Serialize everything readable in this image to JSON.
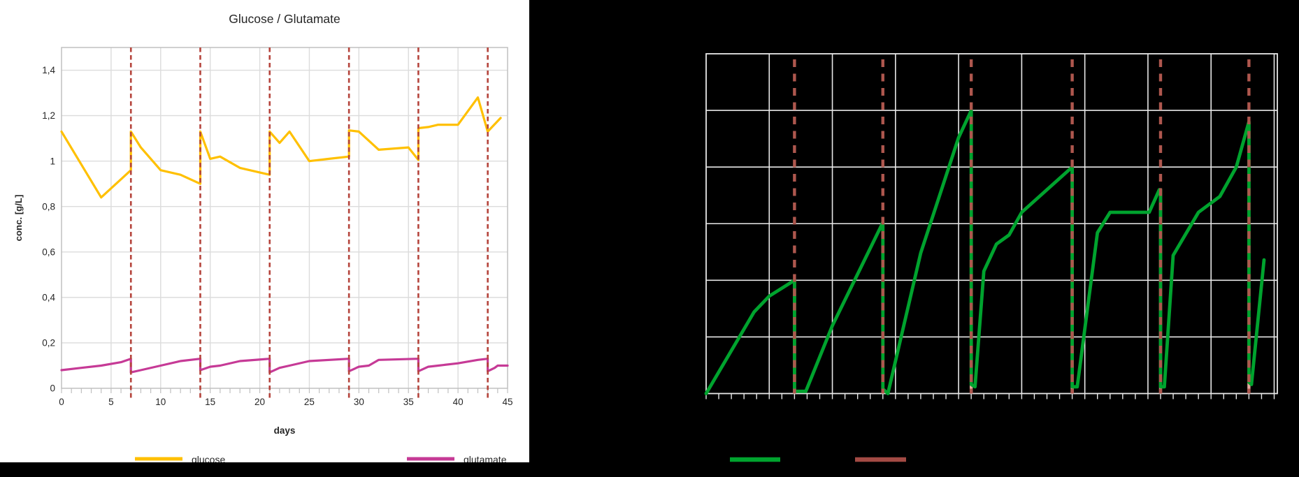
{
  "colors": {
    "glucose": "#FFC000",
    "glutamate": "#C63A96",
    "green_series": "#00A32E",
    "feed_dash_left": "#B5443C",
    "feed_dash_right": "#AE574E",
    "feed_underlay_right": "#E3A89D",
    "left_grid": "#DCDCDC",
    "left_frame": "#C0C0C0",
    "right_grid": "#E8E8E8",
    "text": "#262626"
  },
  "chart_data": [
    {
      "type": "line",
      "title": "Glucose / Glutamate",
      "xlabel": "days",
      "ylabel": "conc. [g/L]",
      "xlim": [
        0,
        45
      ],
      "ylim": [
        0,
        1.5
      ],
      "x_major": 5,
      "x_minor": 1,
      "y_major": 0.2,
      "grid": true,
      "legend_position": "bottom",
      "x_tick_labels": [
        "0",
        "5",
        "10",
        "15",
        "20",
        "25",
        "30",
        "35",
        "40",
        "45"
      ],
      "y_tick_labels": [
        "0",
        "0,2",
        "0,4",
        "0,6",
        "0,8",
        "1",
        "1,2",
        "1,4"
      ],
      "feed_event_days": [
        7,
        14,
        21,
        29,
        36,
        43
      ],
      "series": [
        {
          "name": "glucose",
          "color": "#FFC000",
          "points": [
            [
              0,
              1.13
            ],
            [
              4,
              0.84
            ],
            [
              7,
              0.96
            ],
            [
              7,
              1.13
            ],
            [
              8,
              1.06
            ],
            [
              10,
              0.96
            ],
            [
              12,
              0.94
            ],
            [
              14,
              0.9
            ],
            [
              14,
              1.13
            ],
            [
              15,
              1.01
            ],
            [
              16,
              1.02
            ],
            [
              18,
              0.97
            ],
            [
              21,
              0.94
            ],
            [
              21,
              1.13
            ],
            [
              22,
              1.08
            ],
            [
              23,
              1.13
            ],
            [
              25,
              1.0
            ],
            [
              27,
              1.01
            ],
            [
              29,
              1.02
            ],
            [
              29,
              1.135
            ],
            [
              30,
              1.13
            ],
            [
              32,
              1.05
            ],
            [
              35,
              1.06
            ],
            [
              36,
              1.005
            ],
            [
              36,
              1.145
            ],
            [
              37,
              1.15
            ],
            [
              38,
              1.16
            ],
            [
              40,
              1.16
            ],
            [
              42,
              1.28
            ],
            [
              43,
              1.13
            ],
            [
              44.3,
              1.19
            ]
          ]
        },
        {
          "name": "glutamate",
          "color": "#C63A96",
          "points": [
            [
              0,
              0.08
            ],
            [
              2,
              0.09
            ],
            [
              4,
              0.1
            ],
            [
              6,
              0.115
            ],
            [
              7,
              0.13
            ],
            [
              7,
              0.07
            ],
            [
              8,
              0.08
            ],
            [
              10,
              0.1
            ],
            [
              12,
              0.12
            ],
            [
              14,
              0.13
            ],
            [
              14,
              0.08
            ],
            [
              15,
              0.095
            ],
            [
              16,
              0.1
            ],
            [
              18,
              0.12
            ],
            [
              21,
              0.13
            ],
            [
              21,
              0.07
            ],
            [
              22,
              0.09
            ],
            [
              23,
              0.1
            ],
            [
              25,
              0.12
            ],
            [
              29,
              0.13
            ],
            [
              29,
              0.075
            ],
            [
              30,
              0.095
            ],
            [
              31,
              0.1
            ],
            [
              32,
              0.125
            ],
            [
              36,
              0.13
            ],
            [
              36,
              0.075
            ],
            [
              37,
              0.095
            ],
            [
              38,
              0.1
            ],
            [
              40,
              0.11
            ],
            [
              42,
              0.125
            ],
            [
              43,
              0.13
            ],
            [
              43,
              0.075
            ],
            [
              43.7,
              0.09
            ],
            [
              44,
              0.1
            ],
            [
              45,
              0.1
            ]
          ]
        }
      ],
      "legend": [
        {
          "label": "glucose",
          "color": "#FFC000"
        },
        {
          "label": "glutamate",
          "color": "#C63A96"
        }
      ]
    },
    {
      "type": "line",
      "title": "",
      "xlabel": "",
      "ylabel": "",
      "background": "#000000",
      "xlim": [
        0,
        45.25
      ],
      "ylim": [
        0,
        1.5
      ],
      "x_major": 5,
      "x_minor": 1,
      "y_major": 0.25,
      "grid": true,
      "feed_event_days": [
        7,
        14,
        21,
        29,
        36,
        43
      ],
      "feed_peak_values": {
        "7": 0.5,
        "14": 0.755,
        "21": 1.25,
        "29": 1.0,
        "36": 0.9,
        "43": 1.2
      },
      "series": [
        {
          "name": "green-sawtooth",
          "color": "#00A32E",
          "points": [
            [
              0,
              0
            ],
            [
              3.8,
              0.36
            ],
            [
              5,
              0.43
            ],
            [
              7,
              0.5
            ],
            [
              7,
              0.01
            ],
            [
              7.9,
              0.01
            ],
            [
              10,
              0.3
            ],
            [
              14,
              0.755
            ],
            [
              14,
              0.02
            ],
            [
              14.4,
              0
            ],
            [
              17,
              0.62
            ],
            [
              20,
              1.13
            ],
            [
              21,
              1.25
            ],
            [
              21,
              0.04
            ],
            [
              21.3,
              0.03
            ],
            [
              22,
              0.54
            ],
            [
              23,
              0.66
            ],
            [
              24,
              0.7
            ],
            [
              25,
              0.8
            ],
            [
              29,
              1.0
            ],
            [
              29,
              0.03
            ],
            [
              29.4,
              0.03
            ],
            [
              31,
              0.71
            ],
            [
              32,
              0.8
            ],
            [
              35.1,
              0.8
            ],
            [
              35.9,
              0.9
            ],
            [
              36,
              0.9
            ],
            [
              36,
              0.03
            ],
            [
              36.3,
              0.03
            ],
            [
              37,
              0.61
            ],
            [
              39,
              0.8
            ],
            [
              40.7,
              0.87
            ],
            [
              42,
              1.0
            ],
            [
              43,
              1.2
            ],
            [
              43,
              0.05
            ],
            [
              43.2,
              0.04
            ],
            [
              44.2,
              0.59
            ]
          ]
        }
      ],
      "legend": [
        {
          "label": "",
          "color": "#00A32E"
        },
        {
          "label": "",
          "color": "#A34A44"
        }
      ]
    }
  ]
}
